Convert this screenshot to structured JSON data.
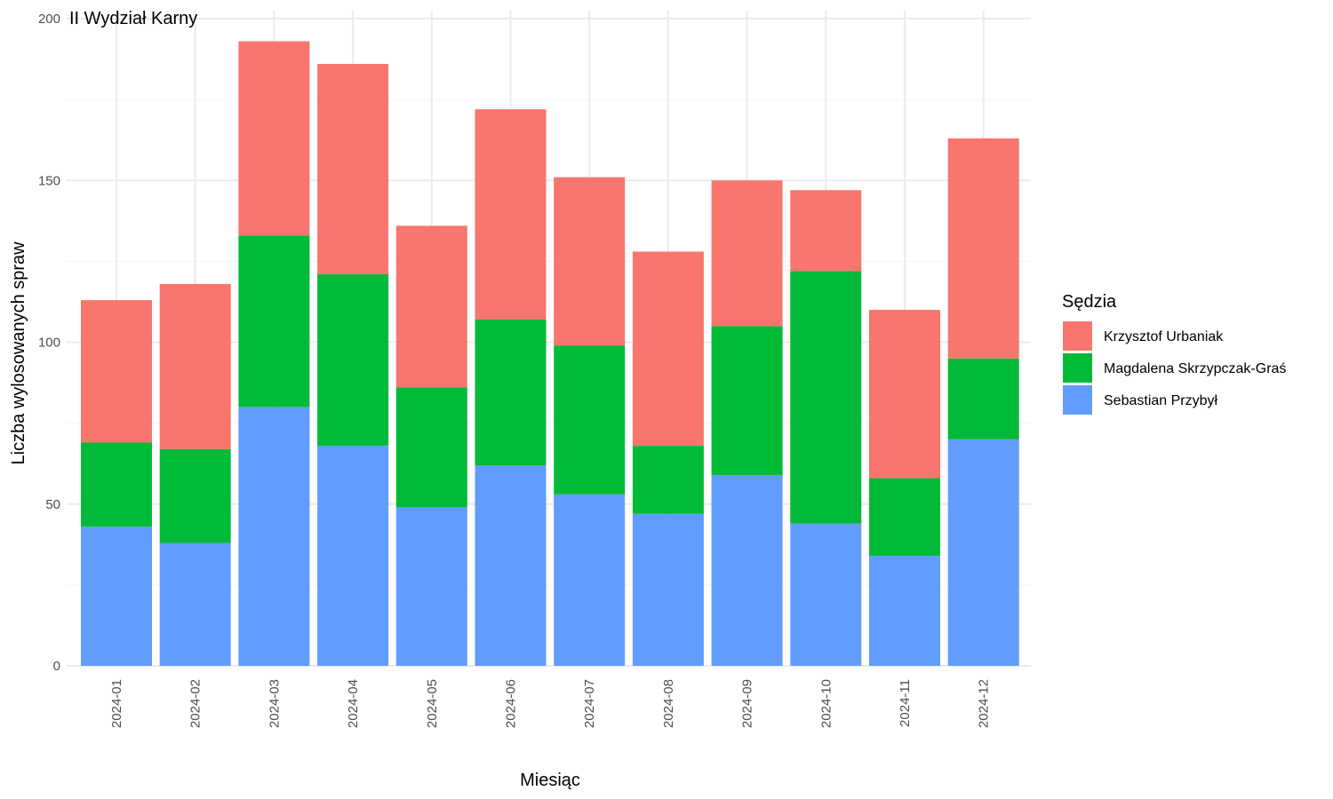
{
  "chart_data": {
    "type": "bar",
    "stacked": true,
    "title": "II Wydział Karny",
    "xlabel": "Miesiąc",
    "ylabel": "Liczba wylosowanych spraw",
    "ylim": [
      0,
      200
    ],
    "yticks": [
      0,
      50,
      100,
      150,
      200
    ],
    "grid": true,
    "legend": {
      "title": "Sędzia",
      "position": "right"
    },
    "categories": [
      "2024-01",
      "2024-02",
      "2024-03",
      "2024-04",
      "2024-05",
      "2024-06",
      "2024-07",
      "2024-08",
      "2024-09",
      "2024-10",
      "2024-11",
      "2024-12"
    ],
    "series": [
      {
        "name": "Sebastian Przybył",
        "color": "#619CFF",
        "values": [
          43,
          38,
          80,
          68,
          49,
          62,
          53,
          47,
          59,
          44,
          34,
          70
        ]
      },
      {
        "name": "Magdalena Skrzypczak-Graś",
        "color": "#00BA38",
        "values": [
          26,
          29,
          53,
          53,
          37,
          45,
          46,
          21,
          46,
          78,
          24,
          25
        ]
      },
      {
        "name": "Krzysztof Urbaniak",
        "color": "#F8766D",
        "values": [
          44,
          51,
          60,
          65,
          50,
          65,
          52,
          60,
          45,
          25,
          52,
          68
        ]
      }
    ],
    "legend_order": [
      "Krzysztof Urbaniak",
      "Magdalena Skrzypczak-Graś",
      "Sebastian Przybył"
    ]
  }
}
